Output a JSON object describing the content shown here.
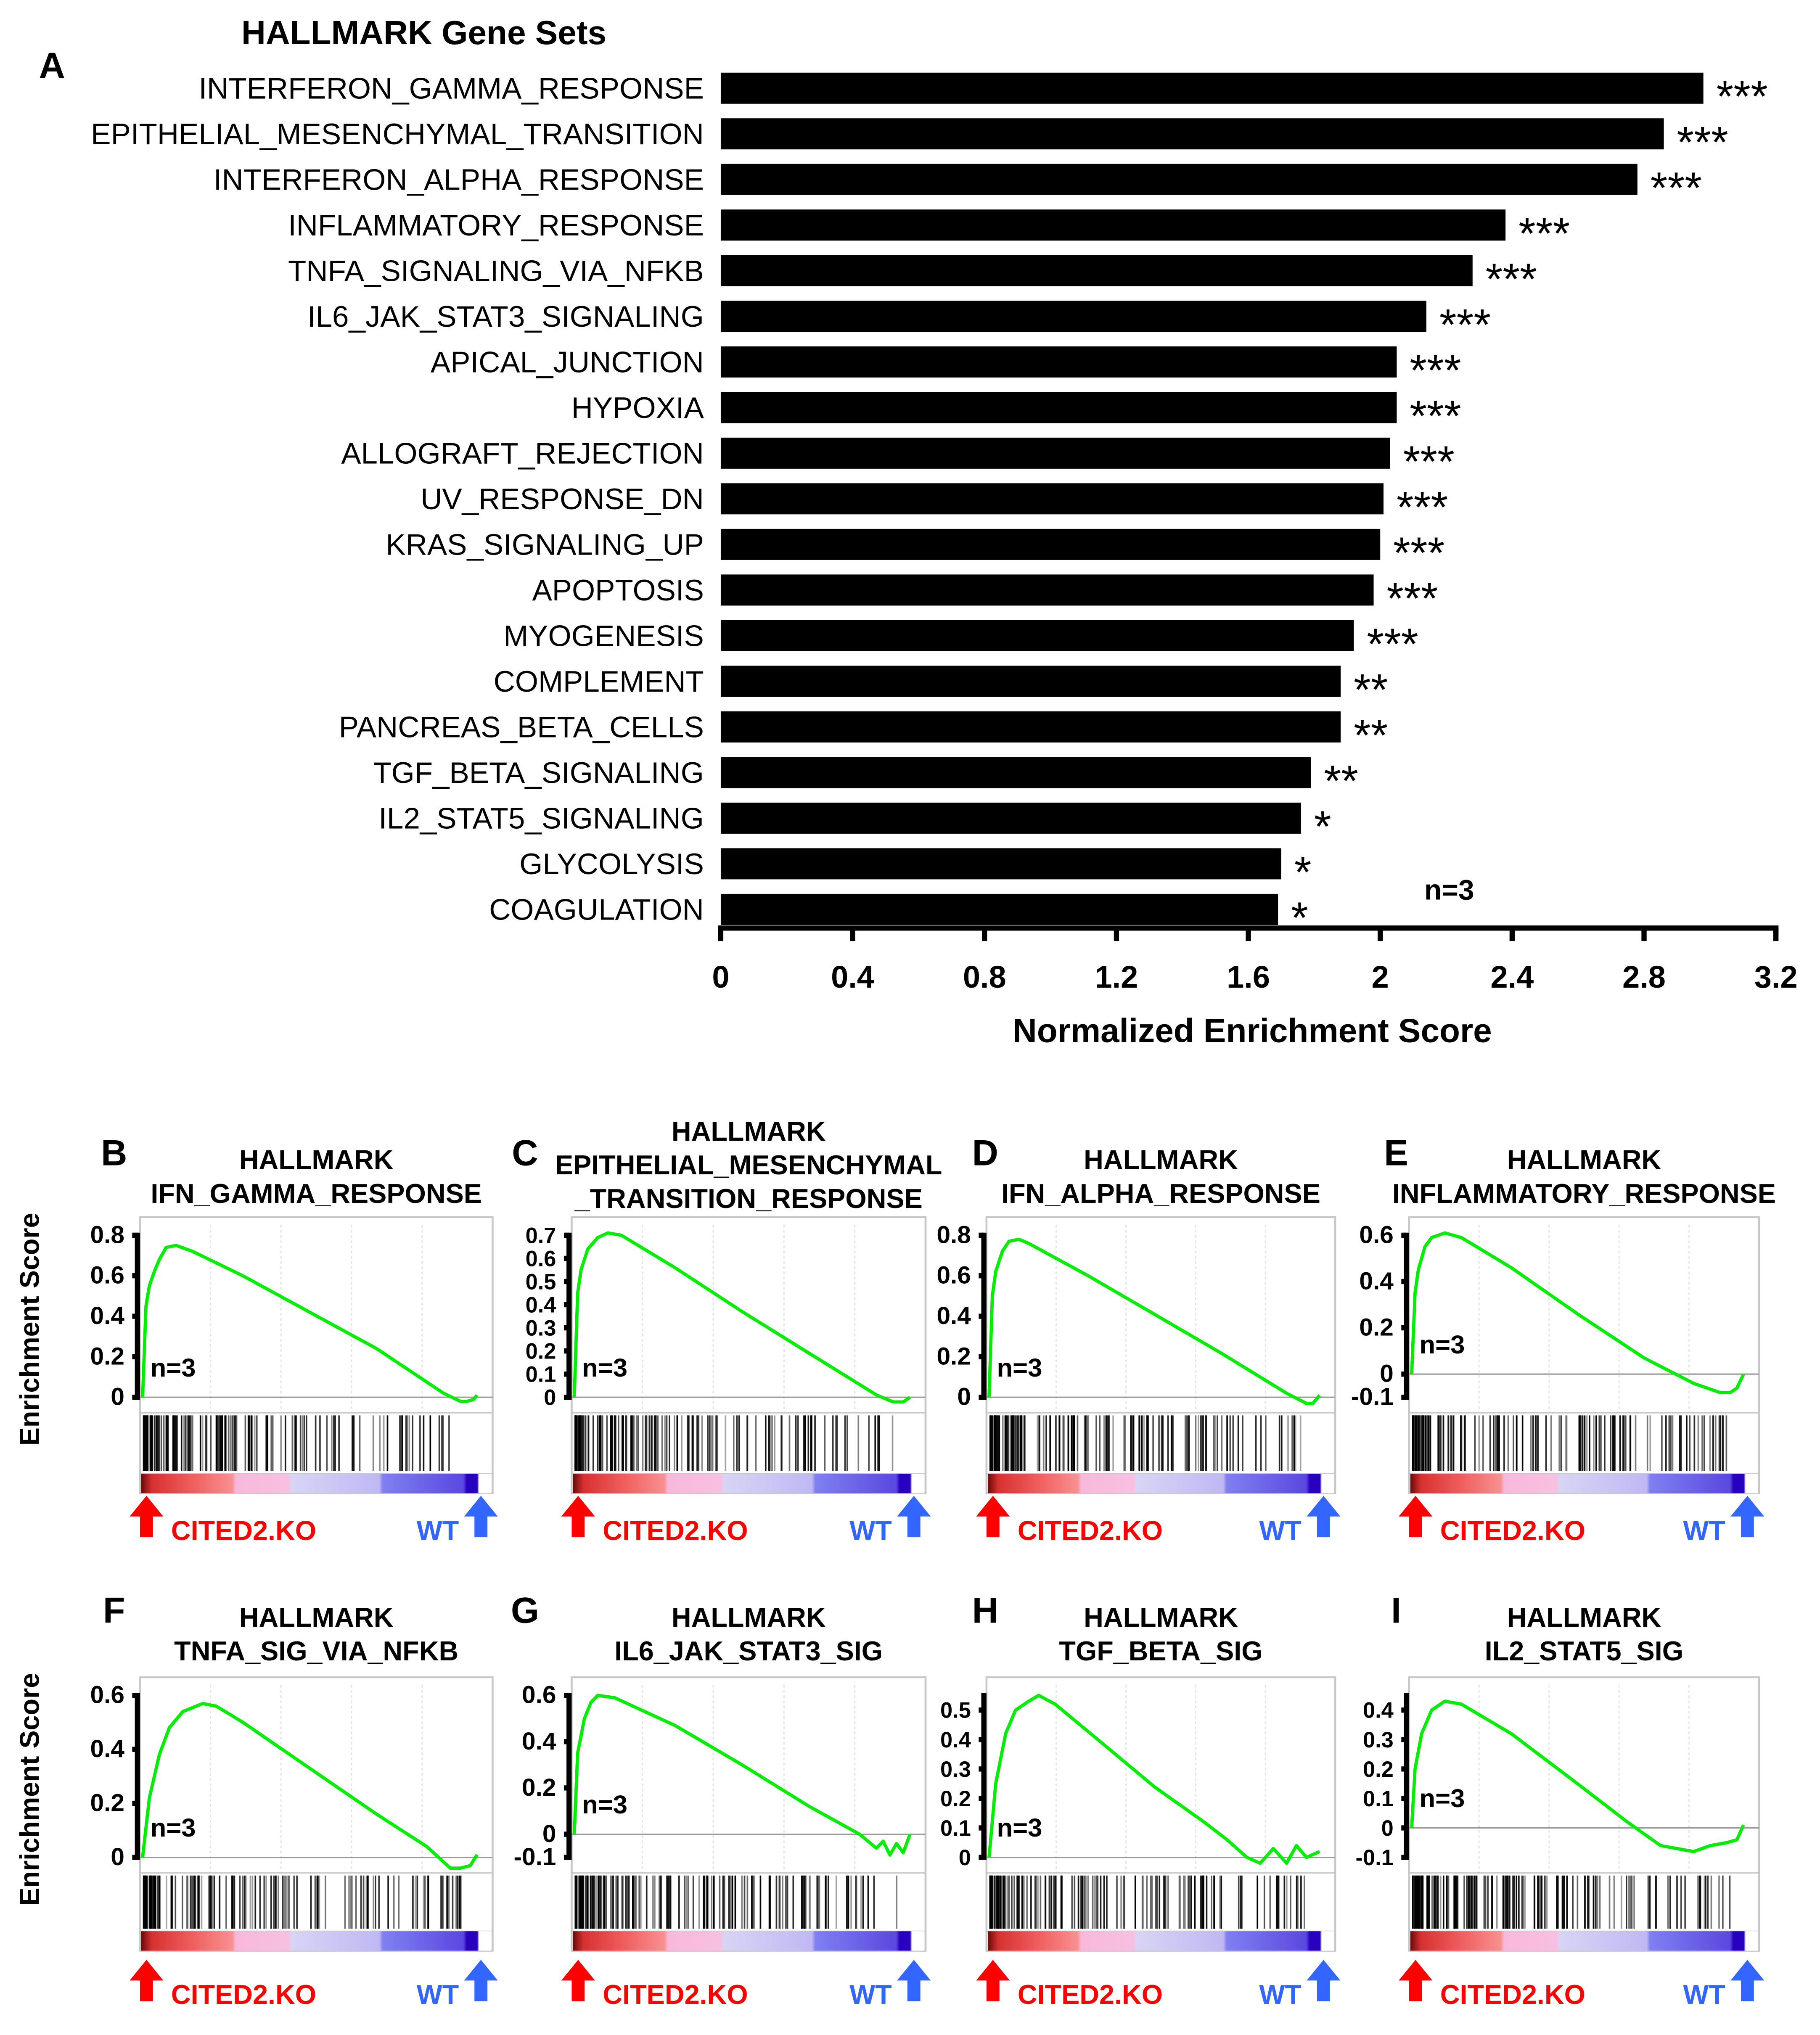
{
  "chart_data": [
    {
      "type": "bar",
      "panel_letter": "A",
      "title": "HALLMARK Gene Sets",
      "xlabel": "Normalized Enrichment Score",
      "ylabel": "",
      "xlim": [
        0,
        3.2
      ],
      "xticks": [
        "0",
        "0.4",
        "0.8",
        "1.2",
        "1.6",
        "2",
        "2.4",
        "2.8",
        "3.2"
      ],
      "annotation": "n=3",
      "categories": [
        "INTERFERON_GAMMA_RESPONSE",
        "EPITHELIAL_MESENCHYMAL_TRANSITION",
        "INTERFERON_ALPHA_RESPONSE",
        "INFLAMMATORY_RESPONSE",
        "TNFA_SIGNALING_VIA_NFKB",
        "IL6_JAK_STAT3_SIGNALING",
        "APICAL_JUNCTION",
        "HYPOXIA",
        "ALLOGRAFT_REJECTION",
        "UV_RESPONSE_DN",
        "KRAS_SIGNALING_UP",
        "APOPTOSIS",
        "MYOGENESIS",
        "COMPLEMENT",
        "PANCREAS_BETA_CELLS",
        "TGF_BETA_SIGNALING",
        "IL2_STAT5_SIGNALING",
        "GLYCOLYSIS",
        "COAGULATION"
      ],
      "values": [
        2.98,
        2.86,
        2.78,
        2.38,
        2.28,
        2.14,
        2.05,
        2.05,
        2.03,
        2.01,
        2.0,
        1.98,
        1.92,
        1.88,
        1.88,
        1.79,
        1.76,
        1.7,
        1.69
      ],
      "significance": [
        "***",
        "***",
        "***",
        "***",
        "***",
        "***",
        "***",
        "***",
        "***",
        "***",
        "***",
        "***",
        "***",
        "**",
        "**",
        "**",
        "*",
        "*",
        "*"
      ],
      "color": "#000000"
    },
    {
      "type": "line",
      "panel_letter": "B",
      "title": [
        "HALLMARK",
        "IFN_GAMMA_RESPONSE"
      ],
      "ylabel": "Enrichment Score",
      "ylim": [
        0,
        0.8
      ],
      "yticks": [
        "0",
        "0.2",
        "0.4",
        "0.6",
        "0.8"
      ],
      "annotation": "n=3",
      "left_label": "CITED2.KO",
      "right_label": "WT",
      "x": [
        0,
        0.01,
        0.02,
        0.035,
        0.05,
        0.07,
        0.1,
        0.15,
        0.3,
        0.5,
        0.7,
        0.9,
        0.95,
        0.97,
        0.99,
        1
      ],
      "y": [
        0,
        0.45,
        0.55,
        0.62,
        0.68,
        0.74,
        0.75,
        0.72,
        0.6,
        0.42,
        0.24,
        0.02,
        -0.02,
        -0.02,
        -0.01,
        0.01
      ]
    },
    {
      "type": "line",
      "panel_letter": "C",
      "title": [
        "HALLMARK",
        "EPITHELIAL_MESENCHYMAL",
        "_TRANSITION_RESPONSE"
      ],
      "ylabel": "",
      "ylim": [
        0,
        0.7
      ],
      "yticks": [
        "0",
        "0.1",
        "0.2",
        "0.3",
        "0.4",
        "0.5",
        "0.6",
        "0.7"
      ],
      "annotation": "n=3",
      "left_label": "CITED2.KO",
      "right_label": "WT",
      "x": [
        0,
        0.01,
        0.02,
        0.04,
        0.07,
        0.1,
        0.14,
        0.3,
        0.5,
        0.7,
        0.9,
        0.95,
        0.98,
        1
      ],
      "y": [
        0,
        0.45,
        0.55,
        0.64,
        0.69,
        0.71,
        0.7,
        0.56,
        0.37,
        0.19,
        0.01,
        -0.02,
        -0.02,
        0.0
      ]
    },
    {
      "type": "line",
      "panel_letter": "D",
      "title": [
        "HALLMARK",
        "IFN_ALPHA_RESPONSE"
      ],
      "ylabel": "",
      "ylim": [
        0,
        0.8
      ],
      "yticks": [
        "0",
        "0.2",
        "0.4",
        "0.6",
        "0.8"
      ],
      "annotation": "n=3",
      "left_label": "CITED2.KO",
      "right_label": "WT",
      "x": [
        0,
        0.01,
        0.02,
        0.04,
        0.06,
        0.09,
        0.12,
        0.3,
        0.5,
        0.7,
        0.9,
        0.96,
        0.98,
        1
      ],
      "y": [
        0,
        0.5,
        0.62,
        0.72,
        0.77,
        0.78,
        0.76,
        0.6,
        0.41,
        0.22,
        0.02,
        -0.03,
        -0.03,
        0.01
      ]
    },
    {
      "type": "line",
      "panel_letter": "E",
      "title": [
        "HALLMARK",
        "INFLAMMATORY_RESPONSE"
      ],
      "ylabel": "",
      "ylim": [
        -0.1,
        0.6
      ],
      "yticks": [
        "-0.1",
        "0",
        "0.2",
        "0.4",
        "0.6"
      ],
      "annotation": "n=3",
      "left_label": "CITED2.KO",
      "right_label": "WT",
      "x": [
        0,
        0.01,
        0.02,
        0.04,
        0.06,
        0.1,
        0.15,
        0.3,
        0.5,
        0.7,
        0.85,
        0.93,
        0.96,
        0.98,
        1
      ],
      "y": [
        0,
        0.35,
        0.45,
        0.55,
        0.59,
        0.61,
        0.59,
        0.46,
        0.26,
        0.07,
        -0.04,
        -0.08,
        -0.08,
        -0.06,
        0.0
      ]
    },
    {
      "type": "line",
      "panel_letter": "F",
      "title": [
        "HALLMARK",
        "TNFA_SIG_VIA_NFKB"
      ],
      "ylabel": "Enrichment Score",
      "ylim": [
        0,
        0.6
      ],
      "yticks": [
        "0",
        "0.2",
        "0.4",
        "0.6"
      ],
      "annotation": "n=3",
      "left_label": "CITED2.KO",
      "right_label": "WT",
      "x": [
        0,
        0.02,
        0.05,
        0.08,
        0.12,
        0.18,
        0.22,
        0.3,
        0.5,
        0.7,
        0.85,
        0.92,
        0.95,
        0.98,
        1
      ],
      "y": [
        0,
        0.22,
        0.38,
        0.48,
        0.54,
        0.57,
        0.56,
        0.5,
        0.33,
        0.16,
        0.04,
        -0.04,
        -0.04,
        -0.03,
        0.01
      ]
    },
    {
      "type": "line",
      "panel_letter": "G",
      "title": [
        "HALLMARK",
        "IL6_JAK_STAT3_SIG"
      ],
      "ylabel": "",
      "ylim": [
        -0.1,
        0.6
      ],
      "yticks": [
        "-0.1",
        "0",
        "0.2",
        "0.4",
        "0.6"
      ],
      "annotation": "n=3",
      "left_label": "CITED2.KO",
      "right_label": "WT",
      "x": [
        0,
        0.01,
        0.03,
        0.05,
        0.07,
        0.12,
        0.3,
        0.5,
        0.7,
        0.85,
        0.9,
        0.92,
        0.94,
        0.96,
        0.98,
        1
      ],
      "y": [
        0,
        0.35,
        0.5,
        0.57,
        0.6,
        0.59,
        0.47,
        0.3,
        0.12,
        0.0,
        -0.06,
        -0.03,
        -0.09,
        -0.04,
        -0.08,
        0.0
      ]
    },
    {
      "type": "line",
      "panel_letter": "H",
      "title": [
        "HALLMARK",
        "TGF_BETA_SIG"
      ],
      "ylabel": "",
      "ylim": [
        0,
        0.55
      ],
      "yticks": [
        "0",
        "0.1",
        "0.2",
        "0.3",
        "0.4",
        "0.5"
      ],
      "annotation": "n=3",
      "left_label": "CITED2.KO",
      "right_label": "WT",
      "x": [
        0,
        0.02,
        0.05,
        0.08,
        0.12,
        0.15,
        0.2,
        0.35,
        0.5,
        0.65,
        0.72,
        0.78,
        0.82,
        0.86,
        0.9,
        0.93,
        0.96,
        1
      ],
      "y": [
        0,
        0.25,
        0.42,
        0.5,
        0.53,
        0.55,
        0.52,
        0.38,
        0.24,
        0.12,
        0.06,
        0.0,
        -0.02,
        0.03,
        -0.02,
        0.04,
        0.0,
        0.02
      ]
    },
    {
      "type": "line",
      "panel_letter": "I",
      "title": [
        "HALLMARK",
        "IL2_STAT5_SIG"
      ],
      "ylabel": "",
      "ylim": [
        -0.1,
        0.45
      ],
      "yticks": [
        "-0.1",
        "0",
        "0.1",
        "0.2",
        "0.3",
        "0.4"
      ],
      "annotation": "n=3",
      "left_label": "CITED2.KO",
      "right_label": "WT",
      "x": [
        0,
        0.01,
        0.03,
        0.06,
        0.1,
        0.15,
        0.3,
        0.5,
        0.65,
        0.75,
        0.85,
        0.9,
        0.95,
        0.98,
        1
      ],
      "y": [
        0,
        0.2,
        0.32,
        0.4,
        0.43,
        0.42,
        0.32,
        0.15,
        0.02,
        -0.06,
        -0.08,
        -0.06,
        -0.05,
        -0.04,
        0.01
      ]
    }
  ],
  "colors": {
    "curve": "#00ee00",
    "ko": "#ff0000",
    "wt": "#3366ff"
  }
}
